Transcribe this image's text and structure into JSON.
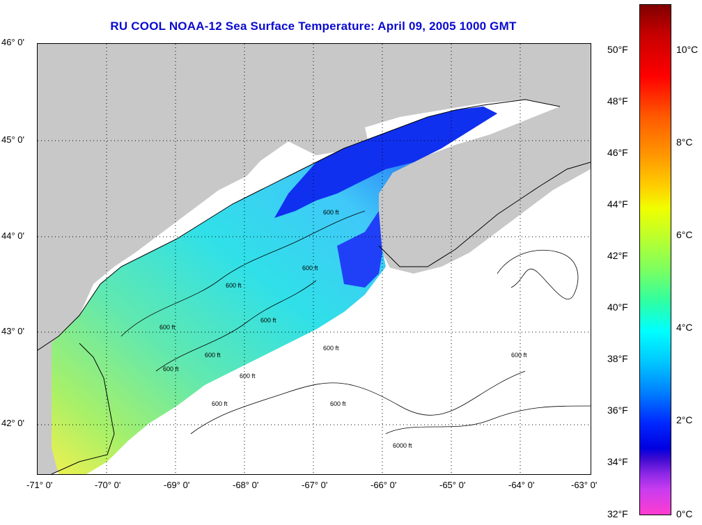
{
  "title": "RU COOL  NOAA-12  Sea Surface Temperature:  April 09, 2005 1000 GMT",
  "map": {
    "lat_labels": [
      "46° 0'",
      "45° 0'",
      "44° 0'",
      "43° 0'",
      "42° 0'"
    ],
    "lon_labels": [
      "-71° 0'",
      "-70° 0'",
      "-69° 0'",
      "-68° 0'",
      "-67° 0'",
      "-66° 0'",
      "-65° 0'",
      "-64° 0'",
      "-63° 0'"
    ],
    "lat_range": [
      41.5,
      46.0
    ],
    "lon_range": [
      -71.0,
      -63.0
    ],
    "grid": "dotted",
    "land_color": "#c8c8c8",
    "ocean_no_data_color": "#ffffff",
    "contour_labels": [
      "600 ft",
      "600 ft",
      "600 ft",
      "600 ft",
      "600 ft",
      "600 ft",
      "600 ft",
      "600 ft",
      "600 ft",
      "600 ft",
      "600 ft",
      "600 ft",
      "6000 ft"
    ]
  },
  "colorbar": {
    "fahrenheit": [
      "50°F",
      "48°F",
      "46°F",
      "44°F",
      "42°F",
      "40°F",
      "38°F",
      "36°F",
      "34°F",
      "32°F"
    ],
    "celsius": [
      "10°C",
      "8°C",
      "6°C",
      "4°C",
      "2°C",
      "0°C"
    ],
    "range_c": [
      0,
      11
    ],
    "colors": [
      "#800000",
      "#ff0000",
      "#ff9b00",
      "#f0ff00",
      "#7cff60",
      "#00ffff",
      "#0080ff",
      "#0000e0",
      "#8c28e6",
      "#ff3cd0"
    ]
  }
}
